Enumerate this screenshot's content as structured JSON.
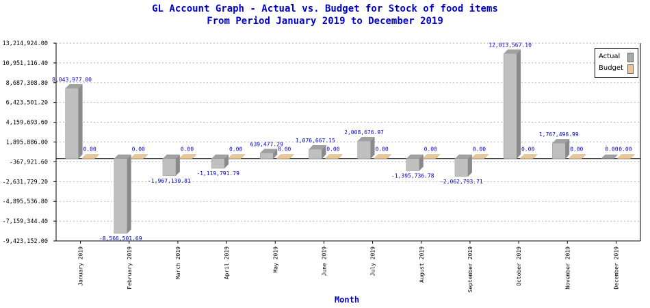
{
  "title_line1": "GL Account Graph - Actual vs. Budget for Stock of food items",
  "title_line2": "From Period January 2019 to December 2019",
  "colors": {
    "title": "#0000cc",
    "label": "#0000cc",
    "actual_front": "#c0c0c0",
    "actual_side": "#8a8a8a",
    "actual_top": "#a0a0a0",
    "budget_front": "#e8c898",
    "budget_side": "#b89868",
    "axis": "#000000",
    "grid": "#999999"
  },
  "legend": {
    "actual": "Actual",
    "budget": "Budget"
  },
  "chart_data": {
    "type": "bar",
    "xlabel": "Month",
    "ylabel": "",
    "grid": true,
    "legend_position": "top-right",
    "ylim": [
      -9423152.0,
      13214924.0
    ],
    "y_ticks": [
      "13,214,924.00",
      "10,951,116.40",
      "8,687,308.80",
      "6,423,501.20",
      "4,159,693.60",
      "1,895,886.00",
      "-367,921.60",
      "-2,631,729.20",
      "-4,895,536.80",
      "-7,159,344.40",
      "-9,423,152.00"
    ],
    "y_tick_values": [
      13214924.0,
      10951116.4,
      8687308.8,
      6423501.2,
      4159693.6,
      1895886.0,
      -367921.6,
      -2631729.2,
      -4895536.8,
      -7159344.4,
      -9423152.0
    ],
    "categories": [
      "January 2019",
      "February 2019",
      "March 2019",
      "April 2019",
      "May 2019",
      "June 2019",
      "July 2019",
      "August 2019",
      "September 2019",
      "October 2019",
      "November 2019",
      "December 2019"
    ],
    "series": [
      {
        "name": "Actual",
        "values": [
          8043977.0,
          -8566501.69,
          -1967130.81,
          -1119791.79,
          639477.29,
          1076667.15,
          2008676.97,
          -1395736.78,
          -2062793.71,
          12013567.1,
          1767496.99,
          0.0
        ],
        "labels": [
          "8,043,977.00",
          "-8,566,501.69",
          "-1,967,130.81",
          "-1,119,791.79",
          "639,477.29",
          "1,076,667.15",
          "2,008,676.97",
          "-1,395,736.78",
          "-2,062,793.71",
          "12,013,567.10",
          "1,767,496.99",
          "0.00"
        ]
      },
      {
        "name": "Budget",
        "values": [
          0,
          0,
          0,
          0,
          0,
          0,
          0,
          0,
          0,
          0,
          0,
          0
        ],
        "labels": [
          "0.00",
          "0.00",
          "0.00",
          "0.00",
          "0.00",
          "0.00",
          "0.00",
          "0.00",
          "0.00",
          "0.00",
          "0.00",
          "0.00"
        ]
      }
    ]
  }
}
